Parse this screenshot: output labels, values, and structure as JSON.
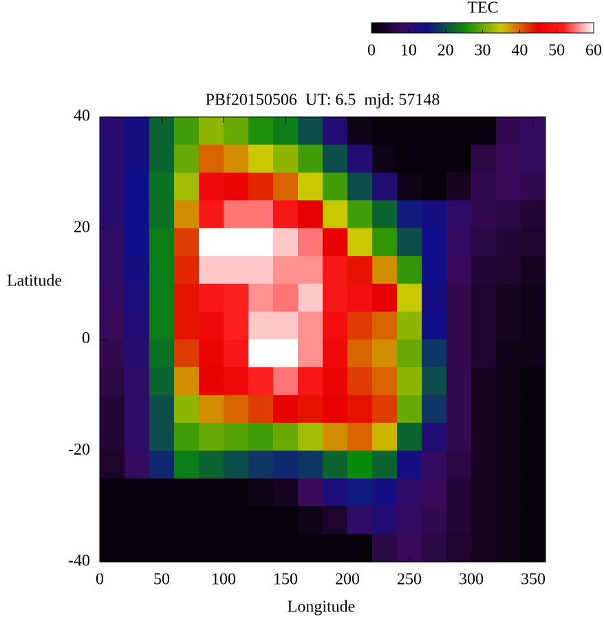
{
  "chart_data": {
    "type": "heatmap",
    "title": "PBf20150506  UT: 6.5  mjd: 57148",
    "xlabel": "Longitude",
    "ylabel": "Latitude",
    "colorbar_label": "TEC",
    "xlim": [
      0,
      360
    ],
    "xticks": [
      0,
      50,
      100,
      150,
      200,
      250,
      300,
      350
    ],
    "ylim": [
      -40,
      40
    ],
    "yticks": [
      -40,
      -20,
      0,
      20,
      40
    ],
    "clim": [
      0,
      60
    ],
    "cticks": [
      0,
      10,
      20,
      30,
      40,
      50,
      60
    ],
    "colorscale": [
      {
        "value": 0,
        "color": "#000000"
      },
      {
        "value": 8,
        "color": "#3a0a5a"
      },
      {
        "value": 15,
        "color": "#10108a"
      },
      {
        "value": 25,
        "color": "#0a8a0a"
      },
      {
        "value": 35,
        "color": "#c8c800"
      },
      {
        "value": 45,
        "color": "#e80000"
      },
      {
        "value": 52,
        "color": "#ff2020"
      },
      {
        "value": 60,
        "color": "#ffffff"
      }
    ],
    "x": [
      10,
      30,
      50,
      70,
      90,
      110,
      130,
      150,
      170,
      190,
      210,
      230,
      250,
      270,
      290,
      310,
      330,
      350
    ],
    "y": [
      37.5,
      32.5,
      27.5,
      22.5,
      17.5,
      12.5,
      7.5,
      2.5,
      -2.5,
      -7.5,
      -12.5,
      -17.5,
      -22.5,
      -27.5,
      -32.5,
      -37.5
    ],
    "z": [
      [
        11,
        14,
        22,
        28,
        32,
        30,
        26,
        24,
        20,
        12,
        2,
        1,
        1,
        1,
        1,
        1,
        7,
        9
      ],
      [
        11,
        14,
        22,
        30,
        40,
        38,
        35,
        32,
        28,
        20,
        12,
        2,
        1,
        1,
        1,
        6,
        8,
        9
      ],
      [
        11,
        15,
        23,
        33,
        47,
        46,
        43,
        40,
        35,
        28,
        20,
        12,
        2,
        1,
        3,
        7,
        8,
        7
      ],
      [
        11,
        15,
        23,
        38,
        50,
        55,
        55,
        50,
        45,
        35,
        28,
        22,
        16,
        14,
        10,
        7,
        6,
        5
      ],
      [
        10,
        15,
        24,
        42,
        60,
        60,
        60,
        58,
        55,
        45,
        35,
        27,
        20,
        15,
        9,
        6,
        5,
        4
      ],
      [
        10,
        14,
        24,
        43,
        58,
        58,
        58,
        56,
        56,
        50,
        44,
        38,
        27,
        15,
        8,
        5,
        4,
        3
      ],
      [
        9,
        13,
        24,
        44,
        50,
        52,
        56,
        55,
        58,
        50,
        48,
        45,
        35,
        14,
        7,
        4,
        3,
        2
      ],
      [
        8,
        12,
        24,
        44,
        47,
        52,
        58,
        58,
        56,
        48,
        42,
        40,
        32,
        15,
        7,
        4,
        3,
        2
      ],
      [
        7,
        11,
        23,
        42,
        46,
        50,
        60,
        60,
        56,
        47,
        40,
        38,
        30,
        18,
        7,
        4,
        2,
        2
      ],
      [
        6,
        10,
        22,
        38,
        45,
        47,
        52,
        55,
        50,
        46,
        42,
        40,
        32,
        20,
        7,
        3,
        2,
        1
      ],
      [
        5,
        10,
        20,
        32,
        38,
        40,
        42,
        45,
        44,
        45,
        44,
        42,
        30,
        18,
        7,
        3,
        2,
        1
      ],
      [
        5,
        10,
        20,
        28,
        30,
        29,
        28,
        30,
        33,
        38,
        40,
        36,
        22,
        12,
        7,
        3,
        2,
        1
      ],
      [
        4,
        9,
        17,
        24,
        22,
        20,
        18,
        17,
        18,
        22,
        25,
        22,
        14,
        9,
        6,
        3,
        2,
        1
      ],
      [
        1,
        1,
        1,
        1,
        1,
        1,
        2,
        3,
        8,
        13,
        16,
        14,
        10,
        8,
        5,
        3,
        2,
        1
      ],
      [
        1,
        1,
        1,
        1,
        1,
        1,
        1,
        1,
        2,
        4,
        10,
        12,
        9,
        7,
        5,
        3,
        2,
        1
      ],
      [
        1,
        1,
        1,
        1,
        1,
        1,
        1,
        1,
        1,
        1,
        1,
        6,
        8,
        6,
        4,
        3,
        2,
        1
      ]
    ]
  }
}
